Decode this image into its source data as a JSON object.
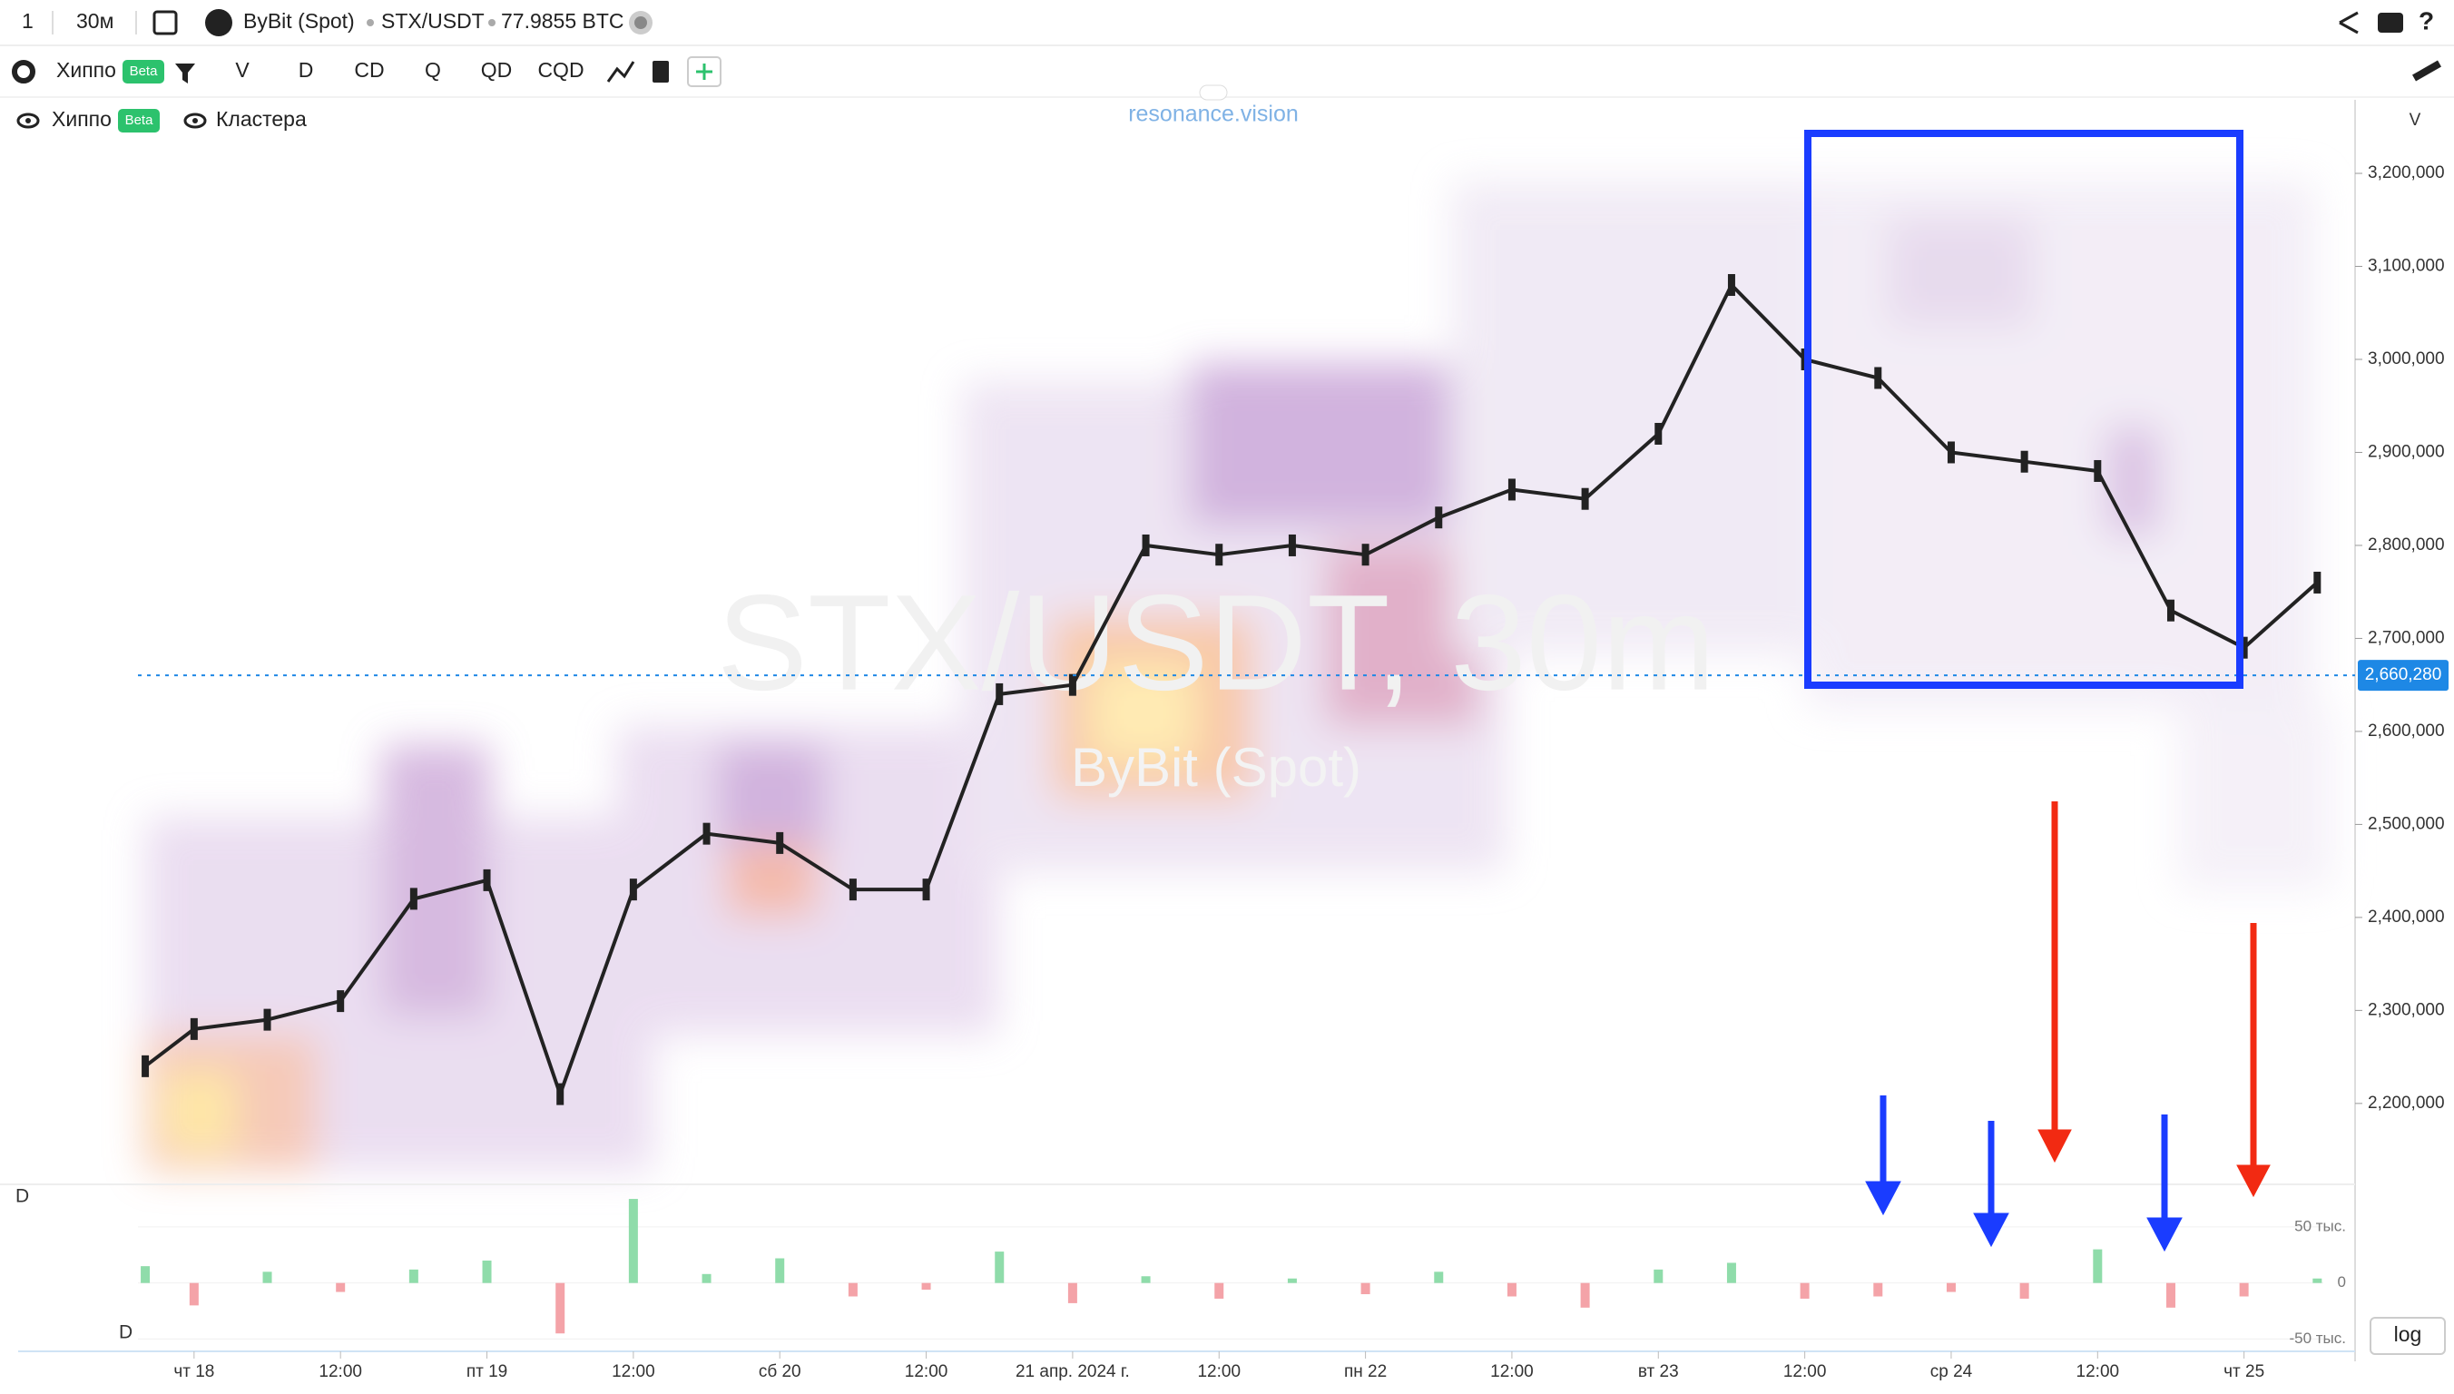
{
  "toolbar": {
    "interval_count": "1",
    "interval": "30м",
    "exchange": "ByBit (Spot)",
    "symbol": "STX/USDT",
    "volume": "77.9855 BTC",
    "indicator": "Хиппо",
    "badge": "Beta",
    "buttons": [
      "V",
      "D",
      "CD",
      "Q",
      "QD",
      "CQD"
    ]
  },
  "legend": {
    "items": [
      "Хиппо",
      "Кластера"
    ],
    "badge": "Beta"
  },
  "brand": "resonance.vision",
  "scale_label": "V",
  "pane_labels": [
    "D",
    "D"
  ],
  "log_button": "log",
  "chart_data": [
    {
      "type": "line",
      "watermark": "STX/USDT, 30m",
      "watermark_sub": "ByBit (Spot)",
      "color": "#222222",
      "x": [
        -4,
        0,
        6,
        12,
        18,
        24,
        30,
        36,
        42,
        48,
        54,
        60,
        66,
        72,
        78,
        84,
        90,
        96,
        102,
        108,
        114,
        120,
        126,
        132,
        138,
        144,
        150,
        156,
        162,
        168,
        174
      ],
      "values": [
        2240000,
        2280000,
        2290000,
        2310000,
        2420000,
        2440000,
        2210000,
        2430000,
        2490000,
        2480000,
        2430000,
        2430000,
        2640000,
        2650000,
        2800000,
        2790000,
        2800000,
        2790000,
        2830000,
        2860000,
        2850000,
        2920000,
        3080000,
        3000000,
        2980000,
        2900000,
        2890000,
        2880000,
        2730000,
        2690000,
        2760000
      ],
      "last_price": {
        "value": 2660280,
        "label": "2,660,280"
      },
      "xlim": [
        -4.6,
        177.1
      ],
      "ylim": [
        2113000,
        3282000
      ],
      "yticks": [
        {
          "value": 2200000,
          "label": "2,200,000"
        },
        {
          "value": 2300000,
          "label": "2,300,000"
        },
        {
          "value": 2400000,
          "label": "2,400,000"
        },
        {
          "value": 2500000,
          "label": "2,500,000"
        },
        {
          "value": 2600000,
          "label": "2,600,000"
        },
        {
          "value": 2700000,
          "label": "2,700,000"
        },
        {
          "value": 2800000,
          "label": "2,800,000"
        },
        {
          "value": 2900000,
          "label": "2,900,000"
        },
        {
          "value": 3000000,
          "label": "3,000,000"
        },
        {
          "value": 3100000,
          "label": "3,100,000"
        },
        {
          "value": 3200000,
          "label": "3,200,000"
        }
      ]
    },
    {
      "type": "bar",
      "positive_color": "#8fdcaa",
      "negative_color": "#f4a3a8",
      "x": [
        -4,
        0,
        6,
        12,
        18,
        24,
        30,
        36,
        42,
        48,
        54,
        60,
        66,
        72,
        78,
        84,
        90,
        96,
        102,
        108,
        114,
        120,
        126,
        132,
        138,
        144,
        150,
        156,
        162,
        168,
        174
      ],
      "values": [
        15,
        -20,
        10,
        -8,
        12,
        20,
        -45,
        75,
        8,
        22,
        -12,
        -6,
        28,
        -18,
        6,
        -14,
        4,
        -10,
        10,
        -12,
        -22,
        12,
        18,
        -14,
        -12,
        -8,
        -14,
        30,
        -22,
        -12,
        4
      ],
      "xlim": [
        -4.6,
        177.1
      ],
      "ylim": [
        -61,
        88
      ],
      "yticks": [
        {
          "value": 50,
          "label": "50 тыс."
        },
        0,
        {
          "value": -50,
          "label": "-50 тыс."
        }
      ],
      "xticks": [
        {
          "value": 0,
          "label": "чт 18"
        },
        {
          "value": 12,
          "label": "12:00"
        },
        {
          "value": 24,
          "label": "пт 19"
        },
        {
          "value": 36,
          "label": "12:00"
        },
        {
          "value": 48,
          "label": "сб 20"
        },
        {
          "value": 60,
          "label": "12:00"
        },
        {
          "value": 72,
          "label": "21 апр. 2024 г."
        },
        {
          "value": 84,
          "label": "12:00"
        },
        {
          "value": 96,
          "label": "пн 22"
        },
        {
          "value": 108,
          "label": "12:00"
        },
        {
          "value": 120,
          "label": "вт 23"
        },
        {
          "value": 132,
          "label": "12:00"
        },
        {
          "value": 144,
          "label": "ср 24"
        },
        {
          "value": 156,
          "label": "12:00"
        },
        {
          "value": 168,
          "label": "чт 25"
        }
      ]
    }
  ]
}
